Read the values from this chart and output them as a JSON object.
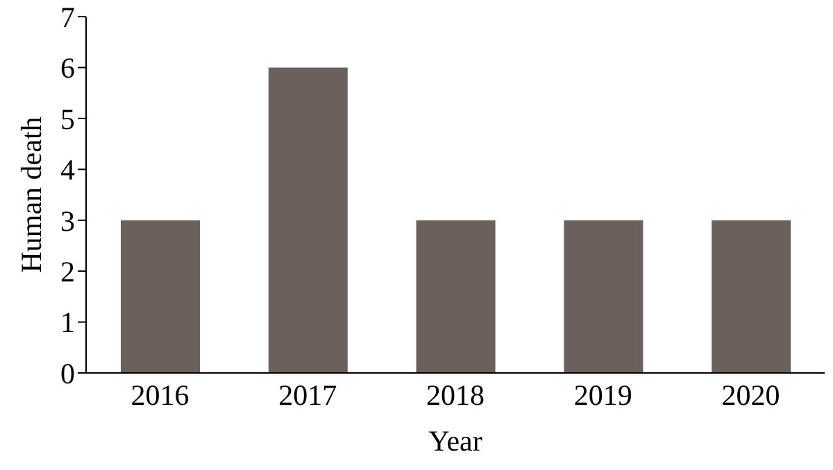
{
  "chart_data": {
    "type": "bar",
    "xlabel": "Year",
    "ylabel": "Human death",
    "categories": [
      "2016",
      "2017",
      "2018",
      "2019",
      "2020"
    ],
    "values": [
      3,
      6,
      3,
      3,
      3
    ],
    "color": "#6b605b",
    "ylim": [
      0,
      7
    ],
    "yticks": [
      0,
      1,
      2,
      3,
      4,
      5,
      6,
      7
    ],
    "grid": false
  }
}
